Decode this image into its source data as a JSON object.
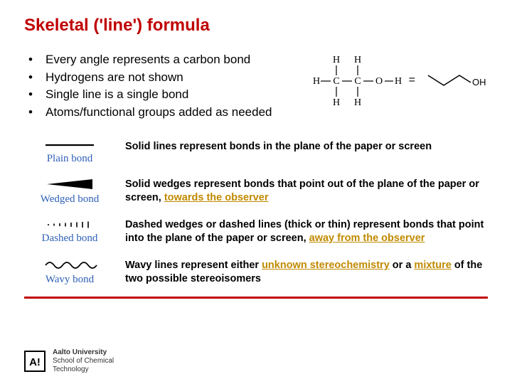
{
  "title": "Skeletal ('line') formula",
  "bullets": [
    "Every angle represents a carbon bond",
    "Hydrogens are not shown",
    "Single line is a single bond",
    "Atoms/functional groups added as needed"
  ],
  "equals": "=",
  "structural": {
    "labels": {
      "H": "H",
      "C": "C",
      "O": "O"
    },
    "line_color": "#000000",
    "font": "Times New Roman"
  },
  "skeletal": {
    "oh_label": "OH",
    "line_color": "#000000"
  },
  "bonds": [
    {
      "label": "Plain bond",
      "kind": "plain",
      "desc_parts": [
        {
          "t": "Solid lines represent bonds in the plane of the paper or screen"
        }
      ]
    },
    {
      "label": "Wedged bond",
      "kind": "wedge",
      "desc_parts": [
        {
          "t": "Solid wedges represent bonds that point out of the plane of the paper or screen, "
        },
        {
          "t": "towards the observer",
          "hl": true
        }
      ]
    },
    {
      "label": "Dashed bond",
      "kind": "dashed",
      "desc_parts": [
        {
          "t": "Dashed wedges or dashed lines (thick or thin) represent bonds that point into the plane of the paper or screen, "
        },
        {
          "t": "away from the observer",
          "hl": true
        }
      ]
    },
    {
      "label": "Wavy bond",
      "kind": "wavy",
      "desc_parts": [
        {
          "t": "Wavy lines represent either "
        },
        {
          "t": "unknown stereochemistry",
          "hl": true
        },
        {
          "t": " or a "
        },
        {
          "t": "mixture",
          "hl": true
        },
        {
          "t": " of the two possible stereoisomers"
        }
      ]
    }
  ],
  "colors": {
    "title": "#c00000",
    "bond_label": "#2e5fb7",
    "highlight": "#c08a00",
    "rule": "#c00000",
    "bond_stroke": "#000000"
  },
  "logo": {
    "mark": "A!",
    "line1": "Aalto University",
    "line2": "School of Chemical",
    "line3": "Technology"
  }
}
